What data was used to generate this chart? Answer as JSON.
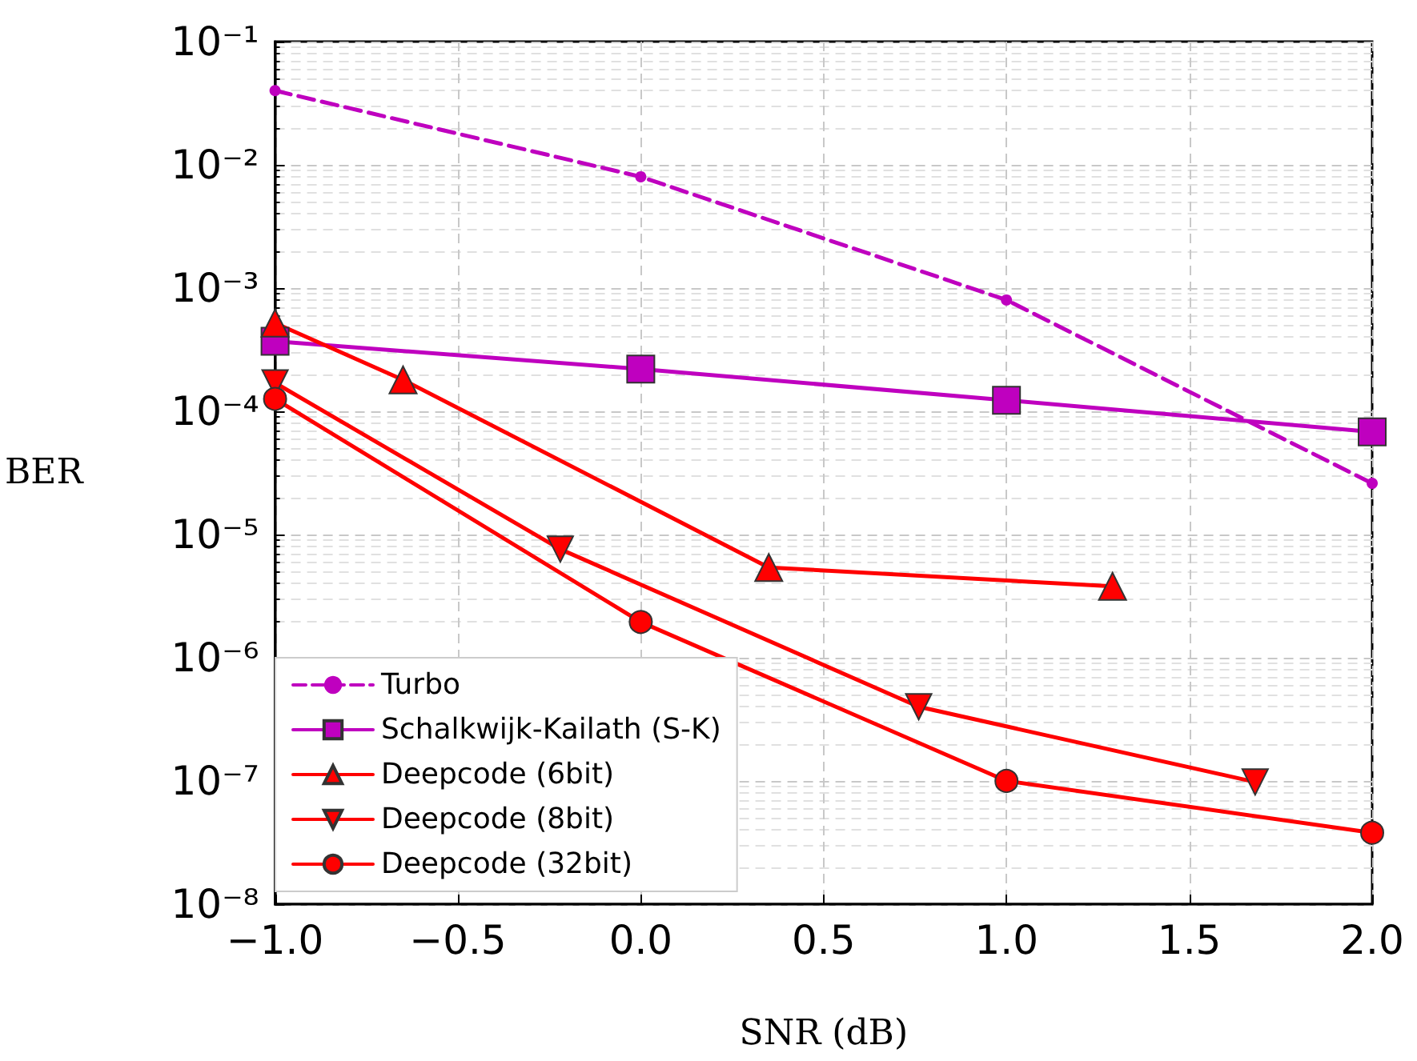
{
  "chart_data": {
    "type": "line",
    "xlabel": "SNR (dB)",
    "ylabel": "BER",
    "log": "y",
    "grid": true,
    "legend": "bottom left",
    "xlim": [
      -1,
      2
    ],
    "xticks": [
      {
        "value": -1,
        "label": "−1.0"
      },
      {
        "value": -0.5,
        "label": "−0.5"
      },
      {
        "value": 0,
        "label": "0.0"
      },
      {
        "value": 0.5,
        "label": "0.5"
      },
      {
        "value": 1,
        "label": "1.0"
      },
      {
        "value": 1.5,
        "label": "1.5"
      },
      {
        "value": 2,
        "label": "2.0"
      }
    ],
    "ylim": [
      1e-08,
      0.1
    ],
    "yticks": [
      {
        "value": 1e-08,
        "label": "10⁻⁸"
      },
      {
        "value": 1e-07,
        "label": "10⁻⁷"
      },
      {
        "value": 1e-06,
        "label": "10⁻⁶"
      },
      {
        "value": 1e-05,
        "label": "10⁻⁵"
      },
      {
        "value": 0.0001,
        "label": "10⁻⁴"
      },
      {
        "value": 0.001,
        "label": "10⁻³"
      },
      {
        "value": 0.01,
        "label": "10⁻²"
      },
      {
        "value": 0.1,
        "label": "10⁻¹"
      }
    ],
    "series": [
      {
        "name": "Turbo",
        "color": "#bf00bf",
        "marker": "circle",
        "line_style": "dashed",
        "x": [
          -1,
          0,
          1,
          2
        ],
        "values": [
          0.04,
          0.008,
          0.0008,
          2.6e-05
        ]
      },
      {
        "name": "Schalkwijk-Kailath (S-K)",
        "color": "#bf00bf",
        "marker": "square",
        "line_style": "solid",
        "x": [
          -1,
          0,
          1,
          2
        ],
        "values": [
          0.00037,
          0.00022,
          0.000123,
          6.8e-05
        ]
      },
      {
        "name": "Deepcode (6bit)",
        "color": "#ff0000",
        "marker": "triangle",
        "line_style": "solid",
        "x": [
          -1,
          -0.65,
          0.35,
          1.29
        ],
        "values": [
          0.00052,
          0.00018,
          5.4e-06,
          3.8e-06
        ]
      },
      {
        "name": "Deepcode (8bit)",
        "color": "#ff0000",
        "marker": "triangle-down",
        "line_style": "solid",
        "x": [
          -1,
          -0.22,
          0.76,
          1.68
        ],
        "values": [
          0.00017,
          7.6e-06,
          4e-07,
          9.8e-08
        ]
      },
      {
        "name": "Deepcode (32bit)",
        "color": "#ff0000",
        "marker": "circle",
        "line_style": "solid",
        "x": [
          -1,
          0,
          1,
          2
        ],
        "values": [
          0.000126,
          1.95e-06,
          1e-07,
          3.8e-08
        ]
      }
    ]
  }
}
